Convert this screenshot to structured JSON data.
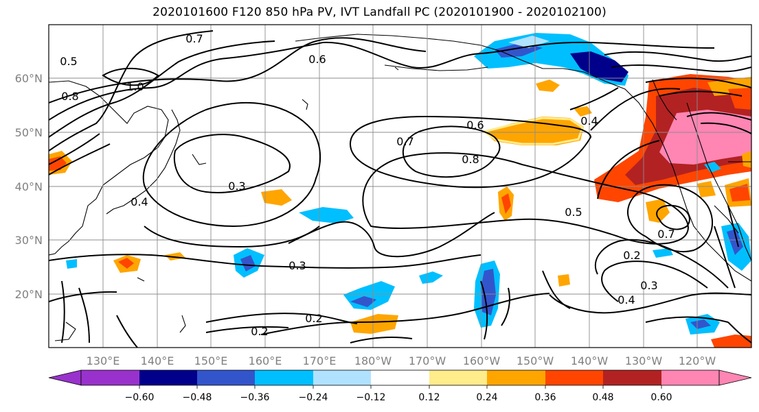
{
  "title": "2020101600 F120 850 hPa PV, IVT Landfall PC (2020101900 - 2020102100)",
  "map": {
    "lat_labels": [
      "60°N",
      "50°N",
      "40°N",
      "30°N",
      "20°N"
    ],
    "lon_labels": [
      "130°E",
      "140°E",
      "150°E",
      "160°E",
      "170°E",
      "180°W",
      "170°W",
      "160°W",
      "150°W",
      "140°W",
      "130°W",
      "120°W"
    ],
    "contour_labels": [
      "0.8",
      "0.7",
      "0.6",
      "0.5",
      "1.0",
      "0.4",
      "0.3",
      "0.2",
      "0.8",
      "0.7",
      "0.6",
      "0.4",
      "0.3",
      "0.2",
      "0.5",
      "0.7",
      "0.4",
      "0.3",
      "0.2"
    ],
    "colors": {
      "land_outline": "#000000",
      "grid": "#8c8c8c",
      "contour": "#000000"
    }
  },
  "colorbar": {
    "ticks": [
      "−0.60",
      "−0.48",
      "−0.36",
      "−0.24",
      "−0.12",
      "0.12",
      "0.24",
      "0.36",
      "0.48",
      "0.60"
    ],
    "colors": [
      "#9932CC",
      "#00008B",
      "#3355CC",
      "#00BFFF",
      "#B0E2FF",
      "#FFFFFF",
      "#FFEC8B",
      "#FFA500",
      "#FF4500",
      "#B22222",
      "#FF85B3"
    ]
  }
}
